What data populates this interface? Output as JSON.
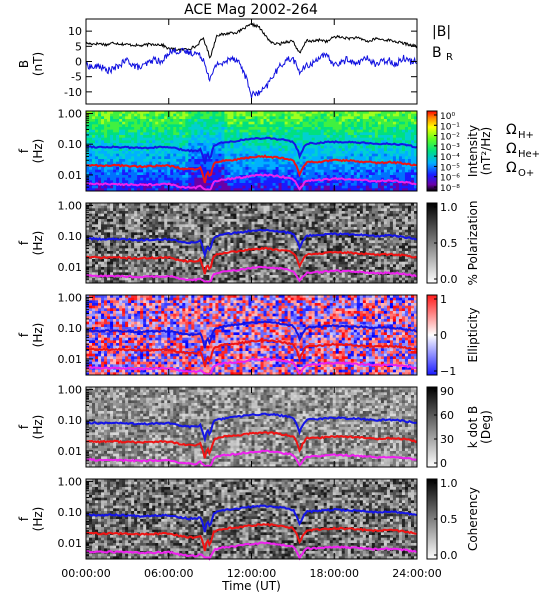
{
  "title": "ACE Mag 2002-264",
  "x_axis": {
    "label": "Time (UT)",
    "ticks": [
      "00:00:00",
      "06:00:00",
      "12:00:00",
      "18:00:00",
      "24:00:00"
    ],
    "tick_hours": [
      0,
      6,
      12,
      18,
      24
    ]
  },
  "colors": {
    "B_total": "#000000",
    "B_R": "#1010e0",
    "proton_gyro": "#1515e6",
    "helium_gyro": "#ee1414",
    "oxygen_gyro": "#ee22ee"
  },
  "legend": {
    "B_total": "|B|",
    "B_R_main": "B",
    "B_R_sub": "R",
    "omega_symbol": "Ω",
    "proton_sub": "H+",
    "helium_sub": "He+",
    "oxygen_sub": "O+"
  },
  "freq_axis": {
    "label_main": "f",
    "label_unit": "(Hz)",
    "ticks": [
      "1.00",
      "0.10",
      "0.01"
    ],
    "tick_values": [
      1.0,
      0.1,
      0.01
    ],
    "range": [
      0.003,
      1.2
    ],
    "scale": "log"
  },
  "panels": [
    {
      "id": "intensity",
      "colorbar_label": "Intensity",
      "colorbar_unit": "(nT²/Hz)",
      "colorbar_type": "rainbow",
      "ticks": [
        "10⁰",
        "10⁻¹",
        "10⁻²",
        "10⁻³",
        "10⁻⁴",
        "10⁻⁵",
        "10⁻⁶",
        "10⁻⁸"
      ]
    },
    {
      "id": "polarization",
      "colorbar_label": "% Polarization",
      "colorbar_unit": "",
      "colorbar_type": "gray_inverse",
      "ticks": [
        "1.0",
        "0.5",
        "0.0"
      ]
    },
    {
      "id": "ellipticity",
      "colorbar_label": "Ellipticity",
      "colorbar_unit": "",
      "colorbar_type": "redblue",
      "ticks": [
        "1",
        "0",
        "−1"
      ]
    },
    {
      "id": "kdotb",
      "colorbar_label": "k dot B",
      "colorbar_unit": "(Deg)",
      "colorbar_type": "gray",
      "ticks": [
        "90",
        "60",
        "30",
        "0"
      ]
    },
    {
      "id": "coherency",
      "colorbar_label": "Coherency",
      "colorbar_unit": "",
      "colorbar_type": "gray_inverse",
      "ticks": [
        "1.0",
        "0.5",
        "0.0"
      ]
    }
  ],
  "chart_data": {
    "type": "line",
    "title": "ACE Mag 2002-264",
    "xlabel": "Time (UT)",
    "xlim": [
      0,
      24
    ],
    "top_panel": {
      "ylabel": "B",
      "yunit": "(nT)",
      "ylim": [
        -14,
        14
      ],
      "yticks": [
        10,
        5,
        0,
        -5,
        -10
      ],
      "ytick_labels": [
        "10",
        "5",
        "0",
        "-5",
        "-10"
      ],
      "x": [
        0,
        0.5,
        1,
        1.5,
        2,
        2.5,
        3,
        3.5,
        4,
        4.5,
        5,
        5.5,
        6,
        6.5,
        7,
        7.5,
        8,
        8.5,
        9,
        9.5,
        10,
        10.5,
        11,
        11.5,
        12,
        12.5,
        13,
        13.5,
        14,
        14.5,
        15,
        15.5,
        16,
        16.5,
        17,
        17.5,
        18,
        18.5,
        19,
        19.5,
        20,
        20.5,
        21,
        21.5,
        22,
        22.5,
        23,
        23.5,
        24
      ],
      "series": [
        {
          "name": "|B|",
          "values": [
            6,
            5.8,
            5.9,
            5.5,
            6.2,
            5.8,
            5.6,
            5.4,
            5.2,
            5.6,
            5.7,
            5.5,
            4.2,
            4.0,
            3.9,
            4.3,
            5.0,
            7.8,
            1.2,
            8.8,
            8.9,
            9.5,
            9.6,
            11.0,
            12.2,
            11.6,
            8.5,
            6.0,
            5.7,
            6.5,
            6.8,
            2.5,
            7.0,
            6.6,
            7.2,
            6.5,
            8.2,
            8.0,
            7.6,
            7.8,
            7.4,
            6.5,
            7.6,
            7.2,
            7.0,
            6.5,
            6.0,
            5.5,
            5.0
          ]
        },
        {
          "name": "B_R",
          "values": [
            -1.0,
            -2.0,
            -1.5,
            -3.0,
            -2.5,
            -1.0,
            0.5,
            -1.5,
            -2.0,
            -0.5,
            0.8,
            -0.5,
            3.2,
            3.5,
            3.3,
            3.0,
            2.8,
            1.0,
            -6.0,
            -0.5,
            -0.8,
            1.5,
            0.5,
            -4.0,
            -11.0,
            -10.5,
            -9.0,
            -5.0,
            -2.0,
            0.5,
            1.0,
            -3.5,
            -1.5,
            -0.5,
            2.0,
            1.5,
            -1.0,
            -0.5,
            1.0,
            -1.0,
            0.5,
            1.0,
            -1.0,
            0.0,
            0.5,
            -1.0,
            1.5,
            0.0,
            0.5
          ]
        }
      ]
    },
    "gyrofrequency_curves": {
      "x": [
        0,
        1,
        2,
        3,
        4,
        5,
        6,
        7,
        7.5,
        8,
        8.3,
        8.6,
        8.8,
        9.0,
        9.3,
        10,
        11,
        12,
        13,
        14,
        15,
        15.5,
        16,
        17,
        18,
        19,
        20,
        21,
        22,
        23,
        24
      ],
      "series": [
        {
          "name": "H+",
          "unit": "Hz",
          "values": [
            0.085,
            0.08,
            0.082,
            0.078,
            0.075,
            0.079,
            0.08,
            0.065,
            0.062,
            0.06,
            0.07,
            0.02,
            0.05,
            0.03,
            0.095,
            0.115,
            0.13,
            0.15,
            0.16,
            0.145,
            0.12,
            0.04,
            0.105,
            0.11,
            0.12,
            0.115,
            0.11,
            0.1,
            0.105,
            0.095,
            0.08
          ]
        },
        {
          "name": "He+",
          "unit": "Hz",
          "values": [
            0.021,
            0.02,
            0.0205,
            0.0195,
            0.019,
            0.0198,
            0.02,
            0.016,
            0.0155,
            0.015,
            0.0175,
            0.005,
            0.0125,
            0.0075,
            0.024,
            0.029,
            0.032,
            0.037,
            0.04,
            0.036,
            0.03,
            0.01,
            0.026,
            0.027,
            0.03,
            0.029,
            0.027,
            0.025,
            0.026,
            0.024,
            0.02
          ]
        },
        {
          "name": "O+",
          "unit": "Hz",
          "values": [
            0.0053,
            0.005,
            0.0051,
            0.0049,
            0.0047,
            0.0049,
            0.005,
            0.004,
            0.0039,
            0.0038,
            0.0044,
            0.0032,
            0.0033,
            0.0031,
            0.006,
            0.0072,
            0.008,
            0.0093,
            0.01,
            0.009,
            0.0075,
            0.0033,
            0.0066,
            0.0068,
            0.0075,
            0.0072,
            0.0068,
            0.0062,
            0.0065,
            0.006,
            0.005
          ]
        }
      ]
    }
  }
}
